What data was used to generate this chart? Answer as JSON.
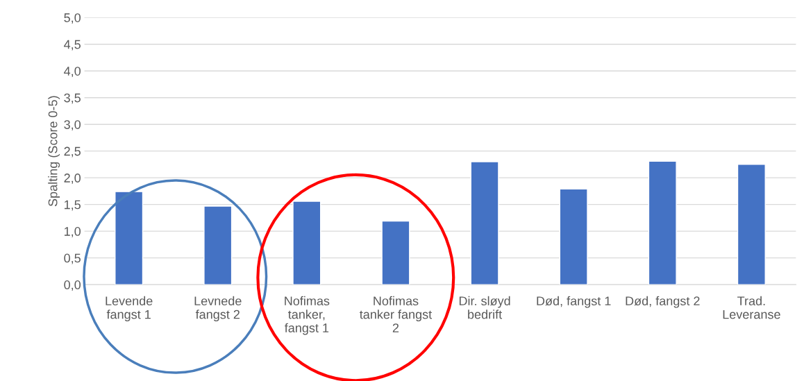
{
  "chart_data": {
    "type": "bar",
    "ylabel": "Spalting (Score 0-5)",
    "categories": [
      "Levende\nfangst 1",
      "Levnede\nfangst 2",
      "Nofimas\ntanker,\nfangst 1",
      "Nofimas\ntanker fangst\n2",
      "Dir. sløyd\nbedrift",
      "Død, fangst 1",
      "Død, fangst 2",
      "Trad.\nLeveranse"
    ],
    "values": [
      1.74,
      1.47,
      1.56,
      1.19,
      2.3,
      1.79,
      2.31,
      2.25
    ],
    "color": "#4472c4",
    "ylim": [
      0,
      5
    ],
    "yticks": [
      {
        "value": 0,
        "label": "0,0"
      },
      {
        "value": 0.5,
        "label": "0,5"
      },
      {
        "value": 1,
        "label": "1,0"
      },
      {
        "value": 1.5,
        "label": "1,5"
      },
      {
        "value": 2,
        "label": "2,0"
      },
      {
        "value": 2.5,
        "label": "2,5"
      },
      {
        "value": 3,
        "label": "3,0"
      },
      {
        "value": 3.5,
        "label": "3,5"
      },
      {
        "value": 4,
        "label": "4,0"
      },
      {
        "value": 4.5,
        "label": "4,5"
      },
      {
        "value": 5,
        "label": "5,0"
      }
    ],
    "grid": "y"
  }
}
